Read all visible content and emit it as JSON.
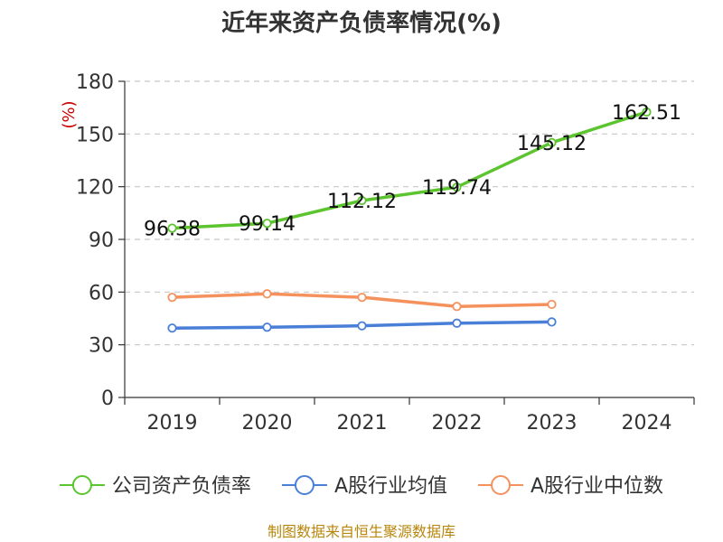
{
  "chart_data": {
    "type": "line",
    "title": "近年来资产负债率情况(%)",
    "ylabel": "(%)",
    "xlabel": "",
    "categories": [
      "2019",
      "2020",
      "2021",
      "2022",
      "2023",
      "2024"
    ],
    "ylim": [
      0,
      180
    ],
    "yticks": [
      0,
      30,
      60,
      90,
      120,
      150,
      180
    ],
    "grid": true,
    "legend_position": "bottom",
    "series": [
      {
        "name": "公司资产负债率",
        "color": "#5cc42e",
        "values": [
          96.38,
          99.14,
          112.12,
          119.74,
          145.12,
          162.51
        ],
        "labels": [
          "96.38",
          "99.14",
          "112.12",
          "119.74",
          "145.12",
          "162.51"
        ]
      },
      {
        "name": "A股行业均值",
        "color": "#4a7fd8",
        "values": [
          39.5,
          40.0,
          40.8,
          42.3,
          43.0,
          null
        ]
      },
      {
        "name": "A股行业中位数",
        "color": "#f5915c",
        "values": [
          57.0,
          59.0,
          57.0,
          51.8,
          53.0,
          null
        ]
      }
    ],
    "source": "制图数据来自恒生聚源数据库"
  }
}
